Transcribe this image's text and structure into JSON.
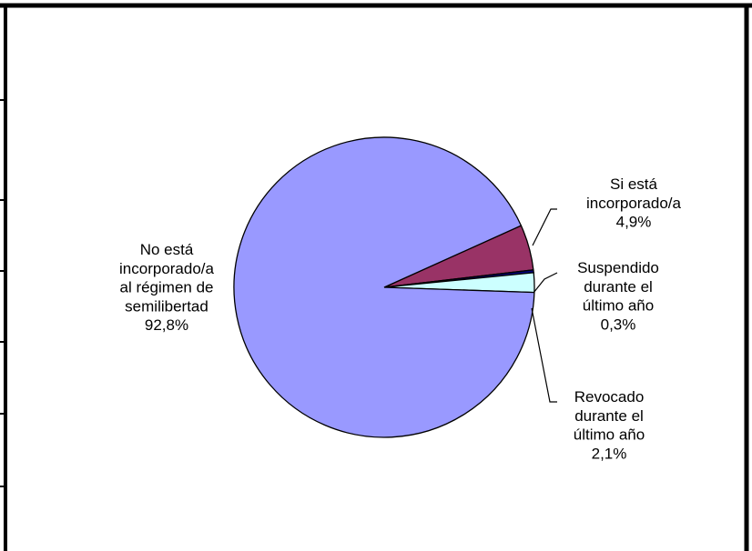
{
  "chart_data": {
    "type": "pie",
    "title": "",
    "slices": [
      {
        "label_lines": [
          "Si está",
          "incorporado/a",
          "4,9%"
        ],
        "value": 4.9,
        "color": "#993366"
      },
      {
        "label_lines": [
          "Suspendido",
          "durante el",
          "último año",
          "0,3%"
        ],
        "value": 0.3,
        "color": "#000080"
      },
      {
        "label_lines": [
          "Revocado",
          "durante el",
          "último año",
          "2,1%"
        ],
        "value": 2.1,
        "color": "#CCFFFF"
      },
      {
        "label_lines": [
          "No está",
          "incorporado/a",
          "al régimen de",
          "semilibertad",
          "92,8%"
        ],
        "value": 92.8,
        "color": "#9999FF"
      }
    ]
  }
}
